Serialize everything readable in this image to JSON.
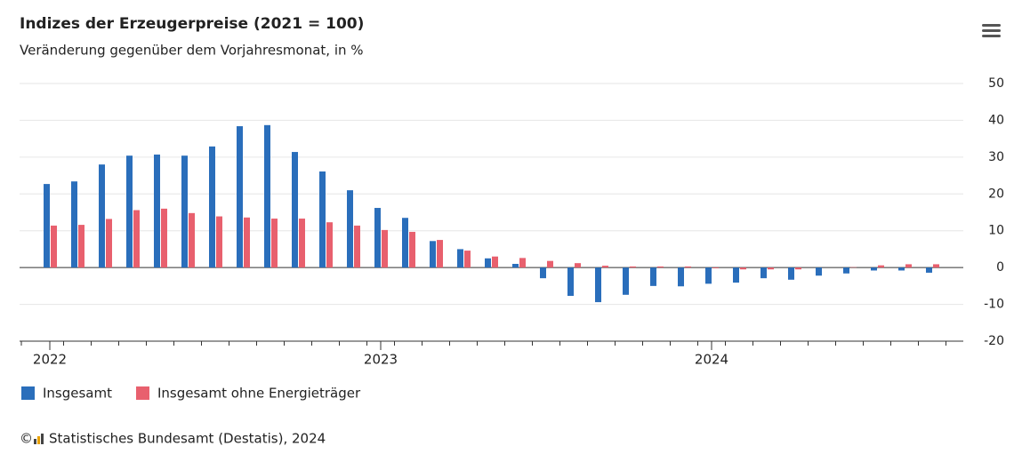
{
  "chart_data": {
    "type": "bar",
    "title": "Indizes der Erzeugerpreise (2021 = 100)",
    "subtitle": "Veränderung gegenüber dem Vorjahresmonat, in %",
    "categories": [
      "2022",
      null,
      null,
      null,
      null,
      null,
      null,
      null,
      null,
      null,
      null,
      null,
      "2023",
      null,
      null,
      null,
      null,
      null,
      null,
      null,
      null,
      null,
      null,
      null,
      "2024",
      null,
      null,
      null,
      null,
      null,
      null,
      null,
      null
    ],
    "series": [
      {
        "name": "Insgesamt",
        "color": "#2a6ebb",
        "values": [
          22.7,
          23.4,
          28.0,
          30.4,
          30.7,
          30.4,
          32.9,
          38.4,
          38.7,
          31.4,
          26.1,
          21.0,
          16.2,
          13.5,
          7.2,
          5.0,
          2.5,
          1.0,
          -2.9,
          -7.7,
          -9.4,
          -7.4,
          -5.0,
          -5.1,
          -4.4,
          -4.1,
          -2.9,
          -3.3,
          -2.2,
          -1.6,
          -0.8,
          -0.8,
          -1.4
        ]
      },
      {
        "name": "Insgesamt ohne Energieträger",
        "color": "#e8606e",
        "values": [
          11.4,
          11.6,
          13.2,
          15.6,
          16.0,
          14.8,
          13.9,
          13.6,
          13.3,
          13.3,
          12.3,
          11.4,
          10.2,
          9.7,
          7.5,
          4.6,
          3.0,
          2.6,
          1.8,
          1.2,
          0.5,
          0.3,
          0.3,
          0.3,
          -0.2,
          -0.5,
          -0.5,
          -0.5,
          0.0,
          0.1,
          0.6,
          0.9,
          0.9
        ]
      }
    ],
    "ylim": [
      -20,
      50
    ],
    "yticks": [
      -20,
      -10,
      0,
      10,
      20,
      30,
      40,
      50
    ],
    "grid": true,
    "copyright": "©",
    "credit": "Statistisches Bundesamt (Destatis), 2024"
  }
}
